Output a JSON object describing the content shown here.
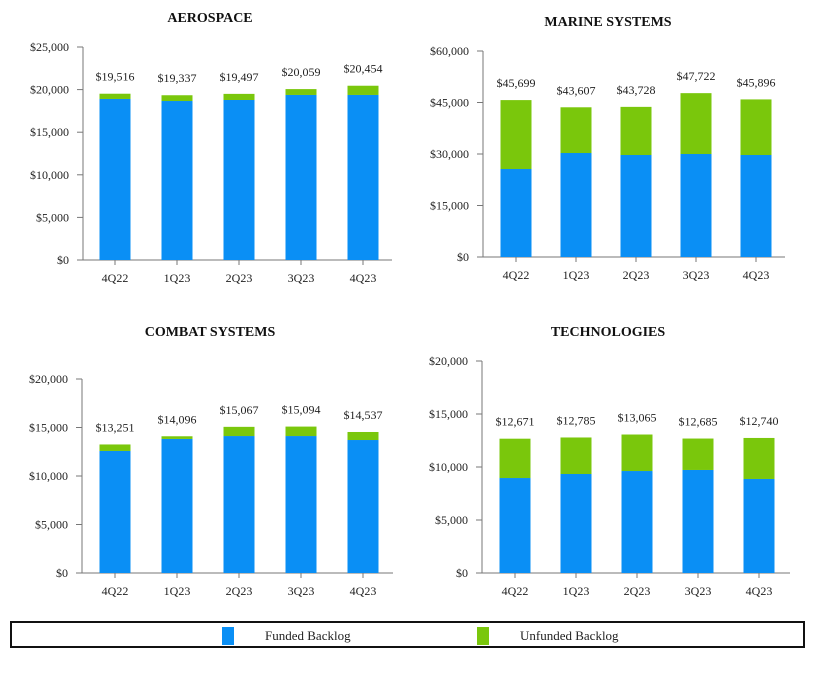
{
  "colors": {
    "funded": "#0a8ff5",
    "unfunded": "#7ac70c",
    "axis": "#777777"
  },
  "legend": {
    "items": [
      {
        "key": "funded",
        "label": "Funded Backlog"
      },
      {
        "key": "unfunded",
        "label": "Unfunded Backlog"
      }
    ]
  },
  "chart_data": [
    {
      "id": "aerospace",
      "type": "bar",
      "stacked": true,
      "title": "AEROSPACE",
      "xlabel": "",
      "ylabel": "",
      "categories": [
        "4Q22",
        "1Q23",
        "2Q23",
        "3Q23",
        "4Q23"
      ],
      "ylim": [
        0,
        25000
      ],
      "yticks": [
        0,
        5000,
        10000,
        15000,
        20000,
        25000
      ],
      "ytick_labels": [
        "$0",
        "$5,000",
        "$10,000",
        "$15,000",
        "$20,000",
        "$25,000"
      ],
      "totals": [
        19516,
        19337,
        19497,
        20059,
        20454
      ],
      "total_labels": [
        "$19,516",
        "$19,337",
        "$19,497",
        "$20,059",
        "$20,454"
      ],
      "series": [
        {
          "name": "Funded Backlog",
          "values": [
            18900,
            18660,
            18780,
            19370,
            19370
          ]
        },
        {
          "name": "Unfunded Backlog",
          "values": [
            616,
            677,
            717,
            689,
            1084
          ]
        }
      ],
      "grid": false,
      "legend": "bottom"
    },
    {
      "id": "marine",
      "type": "bar",
      "stacked": true,
      "title": "MARINE SYSTEMS",
      "xlabel": "",
      "ylabel": "",
      "categories": [
        "4Q22",
        "1Q23",
        "2Q23",
        "3Q23",
        "4Q23"
      ],
      "ylim": [
        0,
        60000
      ],
      "yticks": [
        0,
        15000,
        30000,
        45000,
        60000
      ],
      "ytick_labels": [
        "$0",
        "$15,000",
        "$30,000",
        "$45,000",
        "$60,000"
      ],
      "totals": [
        45699,
        43607,
        43728,
        47722,
        45896
      ],
      "total_labels": [
        "$45,699",
        "$43,607",
        "$43,728",
        "$47,722",
        "$45,896"
      ],
      "series": [
        {
          "name": "Funded Backlog",
          "values": [
            25630,
            30290,
            29710,
            30000,
            29710
          ]
        },
        {
          "name": "Unfunded Backlog",
          "values": [
            20069,
            13317,
            14018,
            17722,
            16186
          ]
        }
      ],
      "grid": false,
      "legend": "bottom"
    },
    {
      "id": "combat",
      "type": "bar",
      "stacked": true,
      "title": "COMBAT SYSTEMS",
      "xlabel": "",
      "ylabel": "",
      "categories": [
        "4Q22",
        "1Q23",
        "2Q23",
        "3Q23",
        "4Q23"
      ],
      "ylim": [
        0,
        20000
      ],
      "yticks": [
        0,
        5000,
        10000,
        15000,
        20000
      ],
      "ytick_labels": [
        "$0",
        "$5,000",
        "$10,000",
        "$15,000",
        "$20,000"
      ],
      "totals": [
        13251,
        14096,
        15067,
        15094,
        14537
      ],
      "total_labels": [
        "$13,251",
        "$14,096",
        "$15,067",
        "$15,094",
        "$14,537"
      ],
      "series": [
        {
          "name": "Funded Backlog",
          "values": [
            12580,
            13820,
            14120,
            14120,
            13710
          ]
        },
        {
          "name": "Unfunded Backlog",
          "values": [
            671,
            276,
            947,
            974,
            827
          ]
        }
      ],
      "grid": false,
      "legend": "bottom"
    },
    {
      "id": "technologies",
      "type": "bar",
      "stacked": true,
      "title": "TECHNOLOGIES",
      "xlabel": "",
      "ylabel": "",
      "categories": [
        "4Q22",
        "1Q23",
        "2Q23",
        "3Q23",
        "4Q23"
      ],
      "ylim": [
        0,
        20000
      ],
      "yticks": [
        0,
        5000,
        10000,
        15000,
        20000
      ],
      "ytick_labels": [
        "$0",
        "$5,000",
        "$10,000",
        "$15,000",
        "$20,000"
      ],
      "totals": [
        12671,
        12785,
        13065,
        12685,
        12740
      ],
      "total_labels": [
        "$12,671",
        "$12,785",
        "$13,065",
        "$12,685",
        "$12,740"
      ],
      "series": [
        {
          "name": "Funded Backlog",
          "values": [
            8960,
            9340,
            9620,
            9720,
            8870
          ]
        },
        {
          "name": "Unfunded Backlog",
          "values": [
            3711,
            3445,
            3445,
            2965,
            3870
          ]
        }
      ],
      "grid": false,
      "legend": "bottom"
    }
  ]
}
